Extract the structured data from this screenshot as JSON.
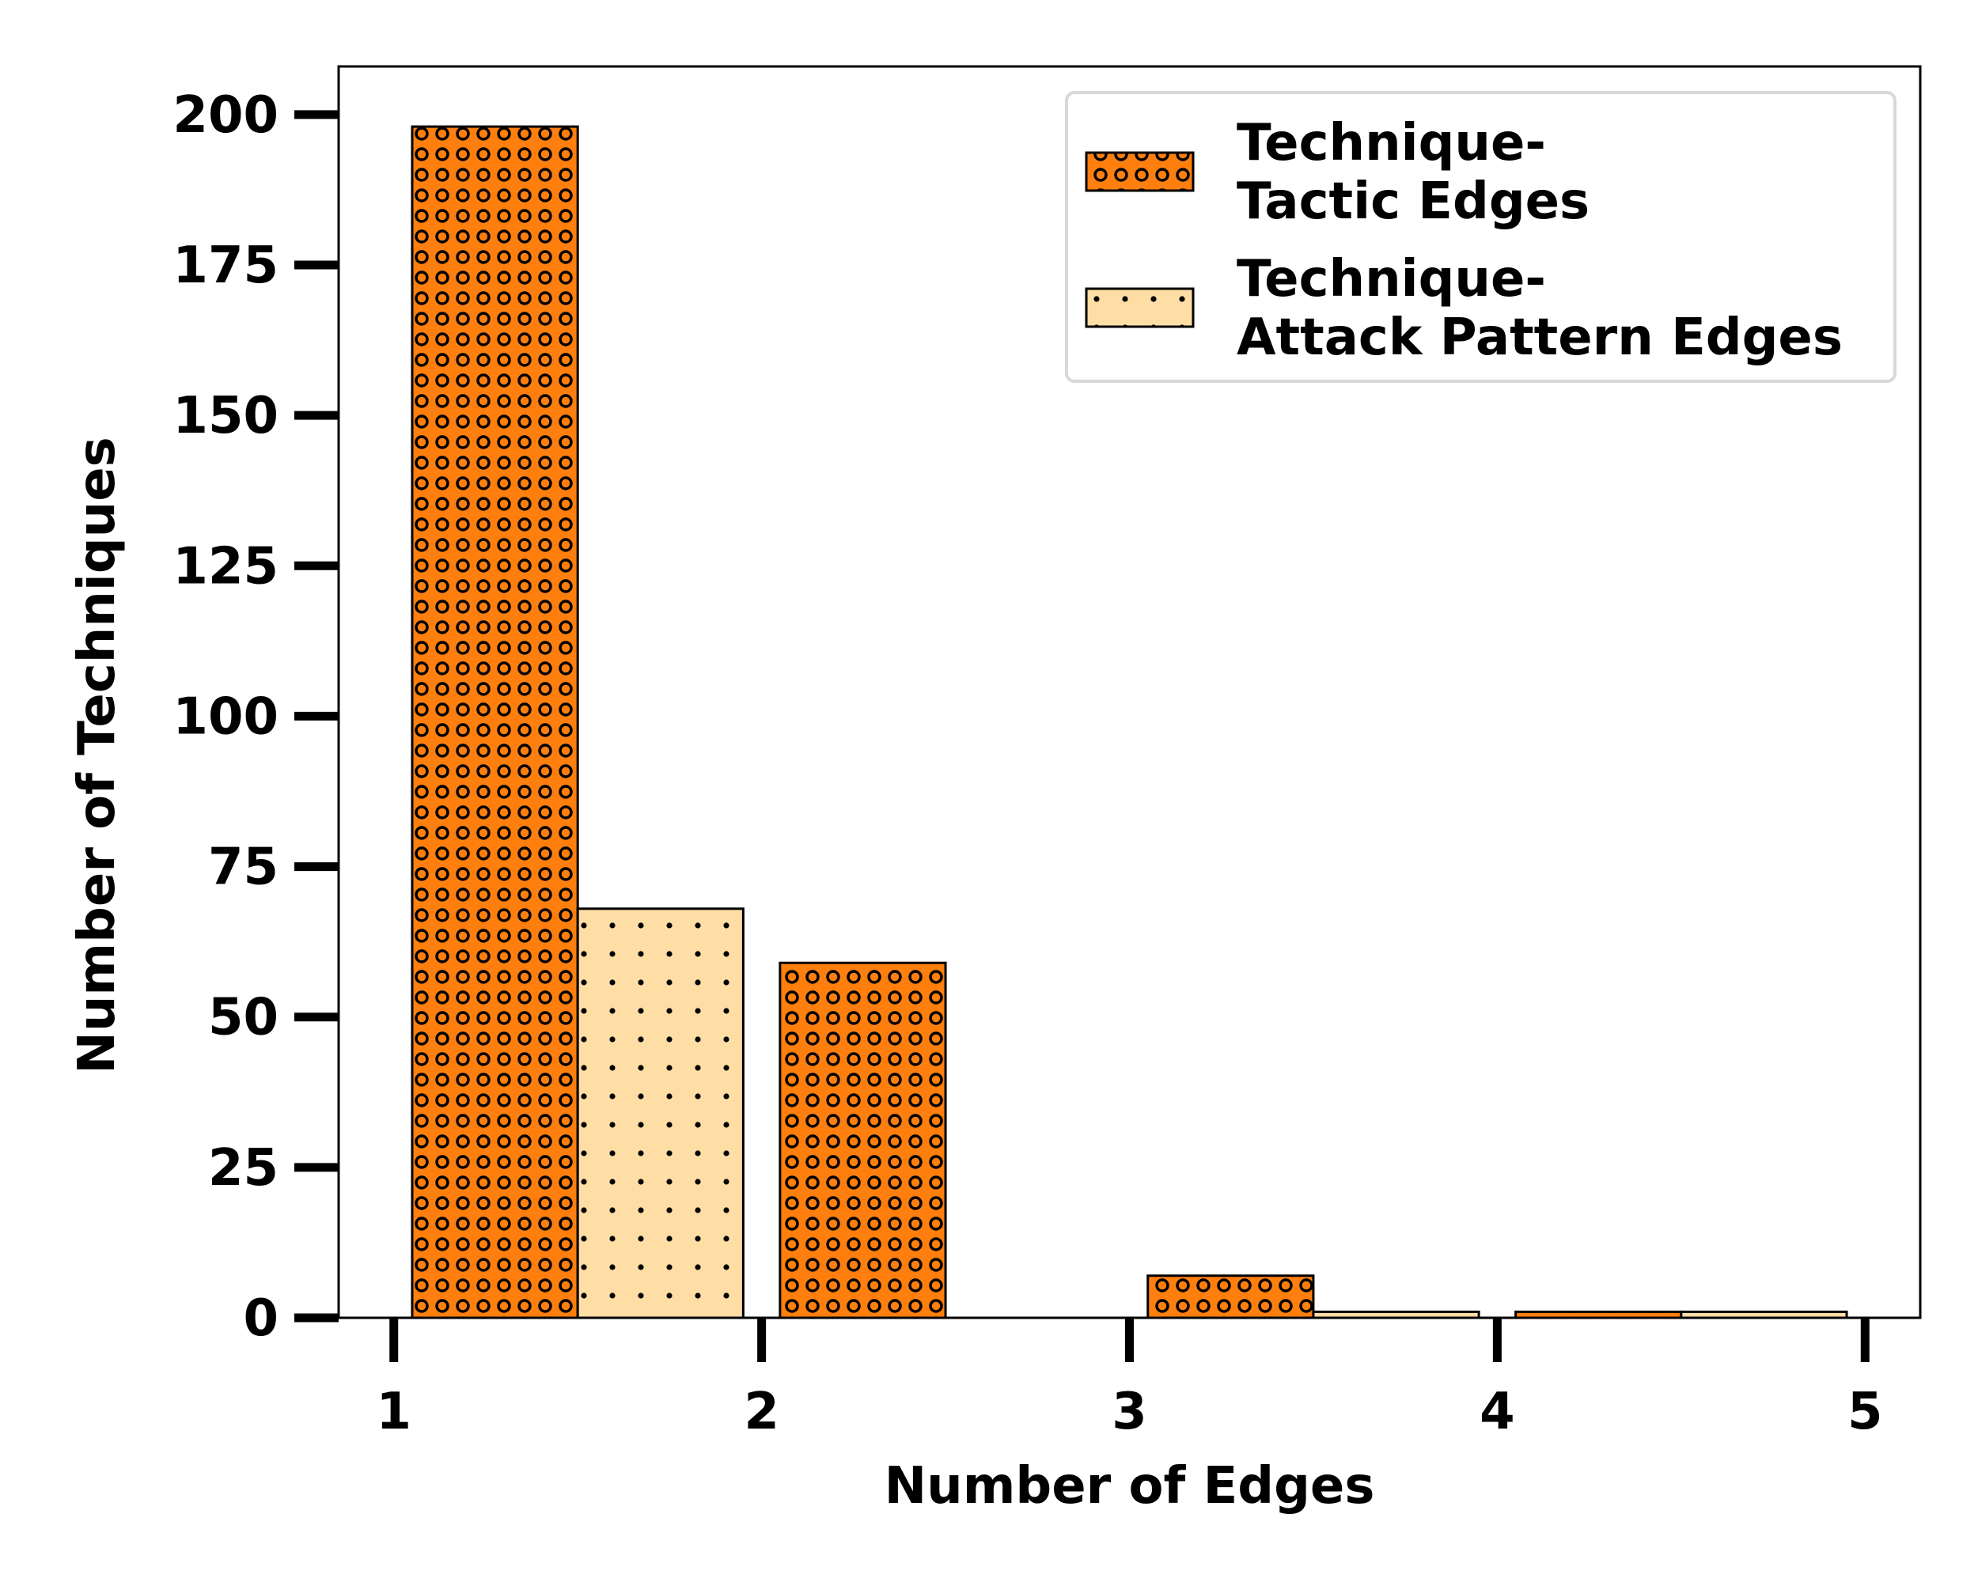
{
  "chart_data": {
    "type": "bar",
    "xlabel": "Number of Edges",
    "ylabel": "Number of Techniques",
    "xlim": [
      0.85,
      5.15
    ],
    "ylim": [
      0,
      208
    ],
    "xticks": [
      "1",
      "2",
      "3",
      "4",
      "5"
    ],
    "yticks": [
      "0",
      "25",
      "50",
      "75",
      "100",
      "125",
      "150",
      "175",
      "200"
    ],
    "bar_width_edges": 0.45,
    "series": [
      {
        "name": "Technique-\nTactic Edges",
        "legend_lines": [
          "Technique-",
          "Tactic Edges"
        ],
        "color": "#ff7f0e",
        "hatch": "circles",
        "x": [
          1.05,
          2.05,
          3.05,
          4.05
        ],
        "values": [
          198,
          59,
          7,
          1
        ]
      },
      {
        "name": "Technique-\nAttack Pattern Edges",
        "legend_lines": [
          "Technique-",
          "Attack Pattern Edges"
        ],
        "color": "#ffdea6",
        "hatch": "dots",
        "x": [
          1.5,
          2.5,
          3.5,
          4.5
        ],
        "values": [
          68,
          0,
          1,
          1
        ]
      }
    ],
    "legend_position": "top-right",
    "grid": false
  }
}
